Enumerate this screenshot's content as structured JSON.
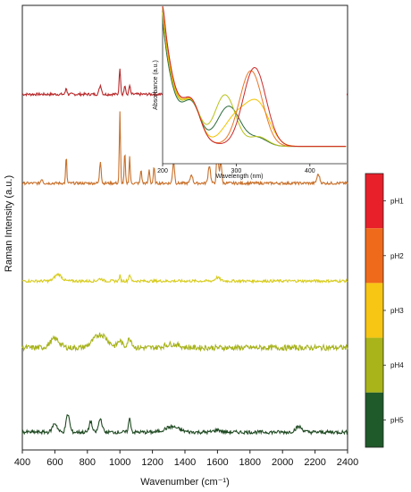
{
  "chart_data": [
    {
      "type": "line",
      "title": "",
      "xlabel": "Wavenumber (cm⁻¹)",
      "ylabel": "Raman Intensity (a.u.)",
      "xlim": [
        400,
        2400
      ],
      "xticks": [
        "400",
        "600",
        "800",
        "1000",
        "1200",
        "1400",
        "1600",
        "1800",
        "2000",
        "2200",
        "2400"
      ],
      "grid": false,
      "legend": "colorbar-right",
      "colorbar": {
        "labels": [
          "pH1",
          "pH2",
          "pH3",
          "pH4",
          "pH5"
        ],
        "colors": [
          "#e8202a",
          "#f06a1c",
          "#f7c514",
          "#a8b41a",
          "#1f5a2a"
        ]
      },
      "series": [
        {
          "name": "pH1",
          "color": "#b8282a",
          "offset": 0.8,
          "noise": 0.003,
          "peaks": [
            [
              670,
              0.015,
              6
            ],
            [
              880,
              0.02,
              10
            ],
            [
              1000,
              0.06,
              6
            ],
            [
              1030,
              0.02,
              6
            ],
            [
              1060,
              0.02,
              6
            ],
            [
              1340,
              0.02,
              12
            ],
            [
              1600,
              0.03,
              10
            ]
          ]
        },
        {
          "name": "pH2",
          "color": "#c8702a",
          "offset": 0.6,
          "noise": 0.003,
          "peaks": [
            [
              520,
              0.01,
              8
            ],
            [
              670,
              0.06,
              5
            ],
            [
              880,
              0.05,
              7
            ],
            [
              1000,
              0.16,
              5
            ],
            [
              1030,
              0.07,
              5
            ],
            [
              1060,
              0.06,
              5
            ],
            [
              1130,
              0.03,
              6
            ],
            [
              1180,
              0.03,
              6
            ],
            [
              1210,
              0.035,
              6
            ],
            [
              1330,
              0.05,
              8
            ],
            [
              1440,
              0.02,
              10
            ],
            [
              1550,
              0.04,
              10
            ],
            [
              1600,
              0.08,
              8
            ],
            [
              1620,
              0.05,
              8
            ],
            [
              2220,
              0.02,
              12
            ]
          ]
        },
        {
          "name": "pH3",
          "color": "#d8cc1c",
          "offset": 0.38,
          "noise": 0.003,
          "peaks": [
            [
              620,
              0.015,
              30
            ],
            [
              880,
              0.005,
              20
            ],
            [
              1000,
              0.012,
              6
            ],
            [
              1060,
              0.015,
              8
            ],
            [
              1600,
              0.008,
              20
            ]
          ]
        },
        {
          "name": "pH4",
          "color": "#a6b21a",
          "offset": 0.23,
          "noise": 0.006,
          "peaks": [
            [
              600,
              0.02,
              40
            ],
            [
              880,
              0.03,
              60
            ],
            [
              1000,
              0.015,
              20
            ],
            [
              1060,
              0.02,
              20
            ],
            [
              1320,
              0.008,
              60
            ]
          ]
        },
        {
          "name": "pH5",
          "color": "#1f4a22",
          "offset": 0.04,
          "noise": 0.004,
          "peaks": [
            [
              600,
              0.02,
              20
            ],
            [
              680,
              0.04,
              15
            ],
            [
              820,
              0.025,
              12
            ],
            [
              880,
              0.03,
              15
            ],
            [
              1060,
              0.03,
              10
            ],
            [
              1320,
              0.012,
              60
            ],
            [
              1600,
              0.005,
              30
            ],
            [
              2100,
              0.012,
              30
            ]
          ]
        }
      ]
    },
    {
      "type": "line",
      "title": "",
      "xlabel": "Wavelength (nm)",
      "ylabel": "Absorbance (a.u.)",
      "xlim": [
        200,
        450
      ],
      "xticks": [
        "200",
        "300",
        "400"
      ],
      "grid": false,
      "series": [
        {
          "color": "#2a6a3a",
          "base": 0.8,
          "bands": [
            [
              240,
              0.2,
              16
            ],
            [
              290,
              0.25,
              22
            ],
            [
              330,
              0.05,
              18
            ]
          ]
        },
        {
          "color": "#b8c21a",
          "base": 0.85,
          "bands": [
            [
              240,
              0.2,
              16
            ],
            [
              285,
              0.32,
              20
            ],
            [
              330,
              0.06,
              18
            ]
          ]
        },
        {
          "color": "#f2c300",
          "base": 0.88,
          "bands": [
            [
              240,
              0.2,
              16
            ],
            [
              300,
              0.18,
              24
            ],
            [
              330,
              0.25,
              22
            ]
          ]
        },
        {
          "color": "#e8782a",
          "base": 0.92,
          "bands": [
            [
              240,
              0.2,
              16
            ],
            [
              320,
              0.48,
              22
            ]
          ]
        },
        {
          "color": "#cc2a2a",
          "base": 0.93,
          "bands": [
            [
              240,
              0.2,
              16
            ],
            [
              325,
              0.5,
              22
            ]
          ]
        }
      ]
    }
  ]
}
